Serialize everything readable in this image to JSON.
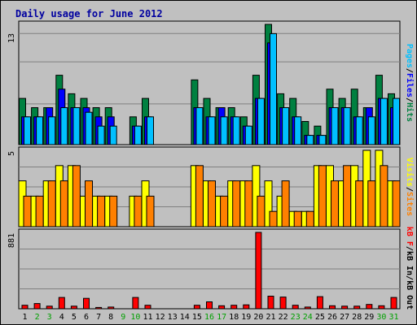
{
  "chart_data": {
    "type": "bar",
    "title": "Daily usage for June 2012",
    "days": [
      "1",
      "2",
      "3",
      "4",
      "5",
      "6",
      "7",
      "8",
      "9",
      "10",
      "11",
      "12",
      "13",
      "14",
      "15",
      "16",
      "17",
      "18",
      "19",
      "20",
      "21",
      "22",
      "23",
      "24",
      "25",
      "26",
      "27",
      "28",
      "29",
      "30",
      "31"
    ],
    "weekend_days": [
      "2",
      "3",
      "9",
      "10",
      "16",
      "17",
      "23",
      "24",
      "30",
      "31"
    ],
    "panels": [
      {
        "id": "hits",
        "ymax_label": "13",
        "ylim": [
          0,
          13
        ],
        "legend": [
          "Pages",
          "/",
          "Files",
          "/",
          "Hits"
        ],
        "series": [
          {
            "name": "Hits",
            "color": "#008040",
            "values": [
              5,
              4,
              4,
              7.5,
              5.5,
              5,
              4,
              4,
              0,
              3,
              5,
              0,
              0,
              0,
              7,
              5,
              4,
              4,
              3,
              7.5,
              13,
              5.5,
              5,
              2.5,
              2,
              6,
              5,
              6,
              4,
              7.5,
              5.5
            ]
          },
          {
            "name": "Files",
            "color": "#0000ff",
            "values": [
              3,
              3,
              4,
              6,
              4,
              4,
              3,
              3,
              0,
              2,
              3,
              0,
              0,
              0,
              4,
              3,
              4,
              3,
              2,
              5,
              11,
              4,
              3,
              1,
              1,
              4,
              4,
              3,
              4,
              5,
              4
            ]
          },
          {
            "name": "Pages",
            "color": "#00c0ff",
            "values": [
              3,
              3,
              3,
              4,
              4,
              3.5,
              2,
              2,
              0,
              2,
              3,
              0,
              0,
              0,
              4,
              3,
              3,
              3,
              2,
              5,
              12,
              4,
              3,
              1,
              1,
              4,
              4,
              3,
              3,
              5,
              5
            ]
          }
        ]
      },
      {
        "id": "visits",
        "ymax_label": "5",
        "ylim": [
          0,
          5
        ],
        "legend": [
          "Visits",
          "/",
          "Sites"
        ],
        "series": [
          {
            "name": "Visits",
            "color": "#ffff00",
            "values": [
              3,
              2,
              3,
              4,
              4,
              2,
              2,
              2,
              0,
              2,
              3,
              0,
              0,
              0,
              4,
              3,
              2,
              3,
              3,
              4,
              3,
              2,
              1,
              1,
              4,
              4,
              3,
              4,
              5,
              5,
              3
            ]
          },
          {
            "name": "Sites",
            "color": "#ff8000",
            "values": [
              2,
              2,
              3,
              3,
              4,
              3,
              2,
              2,
              0,
              2,
              2,
              0,
              0,
              0,
              4,
              3,
              2,
              3,
              3,
              2,
              1,
              3,
              1,
              1,
              4,
              3,
              4,
              3,
              3,
              4,
              3
            ]
          }
        ]
      },
      {
        "id": "kbytes",
        "ymax_label": "881",
        "ylim": [
          0,
          881
        ],
        "legend": [
          "kB F",
          "/",
          "kB In",
          "/",
          "kB Out"
        ],
        "series": [
          {
            "name": "kB F",
            "color": "#ff0000",
            "values": [
              40,
              60,
              30,
              130,
              30,
              120,
              15,
              20,
              0,
              130,
              40,
              0,
              0,
              0,
              40,
              80,
              35,
              40,
              45,
              881,
              145,
              135,
              40,
              20,
              140,
              35,
              30,
              30,
              50,
              35,
              130
            ]
          }
        ]
      }
    ]
  }
}
